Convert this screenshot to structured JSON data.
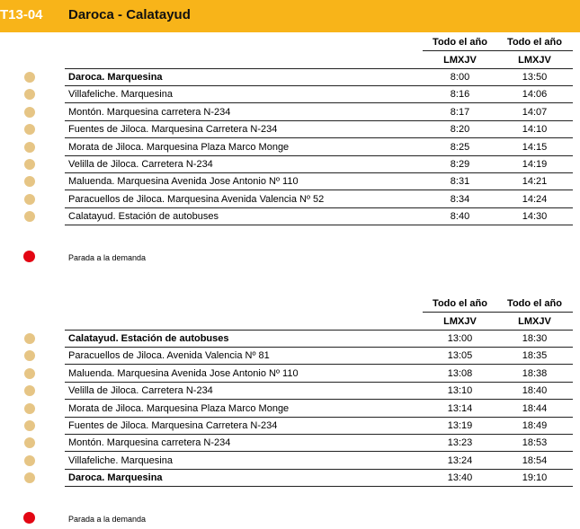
{
  "header": {
    "code": "T13-04",
    "title": "Daroca - Calatayud"
  },
  "timetables": [
    {
      "columns": [
        "Todo el año",
        "Todo el año"
      ],
      "days": [
        "LMXJV",
        "LMXJV"
      ],
      "rows": [
        {
          "stop": "Daroca. Marquesina",
          "times": [
            "8:00",
            "13:50"
          ],
          "bold": true
        },
        {
          "stop": "Villafeliche. Marquesina",
          "times": [
            "8:16",
            "14:06"
          ],
          "bold": false
        },
        {
          "stop": "Montón. Marquesina carretera N-234",
          "times": [
            "8:17",
            "14:07"
          ],
          "bold": false
        },
        {
          "stop": "Fuentes de Jiloca. Marquesina Carretera N-234",
          "times": [
            "8:20",
            "14:10"
          ],
          "bold": false
        },
        {
          "stop": "Morata de Jiloca. Marquesina Plaza Marco Monge",
          "times": [
            "8:25",
            "14:15"
          ],
          "bold": false
        },
        {
          "stop": "Velilla de Jiloca. Carretera N-234",
          "times": [
            "8:29",
            "14:19"
          ],
          "bold": false
        },
        {
          "stop": "Maluenda. Marquesina Avenida Jose Antonio Nº 110",
          "times": [
            "8:31",
            "14:21"
          ],
          "bold": false
        },
        {
          "stop": "Paracuellos de Jiloca. Marquesina Avenida Valencia Nº 52",
          "times": [
            "8:34",
            "14:24"
          ],
          "bold": false
        },
        {
          "stop": "Calatayud. Estación de autobuses",
          "times": [
            "8:40",
            "14:30"
          ],
          "bold": false
        }
      ],
      "legend": "Parada a la demanda"
    },
    {
      "columns": [
        "Todo el año",
        "Todo el año"
      ],
      "days": [
        "LMXJV",
        "LMXJV"
      ],
      "rows": [
        {
          "stop": "Calatayud. Estación de autobuses",
          "times": [
            "13:00",
            "18:30"
          ],
          "bold": true
        },
        {
          "stop": "Paracuellos de Jiloca. Avenida Valencia Nº 81",
          "times": [
            "13:05",
            "18:35"
          ],
          "bold": false
        },
        {
          "stop": "Maluenda. Marquesina Avenida Jose Antonio Nº 110",
          "times": [
            "13:08",
            "18:38"
          ],
          "bold": false
        },
        {
          "stop": "Velilla de Jiloca. Carretera N-234",
          "times": [
            "13:10",
            "18:40"
          ],
          "bold": false
        },
        {
          "stop": "Morata de Jiloca. Marquesina Plaza Marco Monge",
          "times": [
            "13:14",
            "18:44"
          ],
          "bold": false
        },
        {
          "stop": "Fuentes de Jiloca. Marquesina Carretera N-234",
          "times": [
            "13:19",
            "18:49"
          ],
          "bold": false
        },
        {
          "stop": "Montón. Marquesina carretera N-234",
          "times": [
            "13:23",
            "18:53"
          ],
          "bold": false
        },
        {
          "stop": "Villafeliche. Marquesina",
          "times": [
            "13:24",
            "18:54"
          ],
          "bold": false
        },
        {
          "stop": "Daroca. Marquesina",
          "times": [
            "13:40",
            "19:10"
          ],
          "bold": true
        }
      ],
      "legend": "Parada a la demanda"
    }
  ]
}
